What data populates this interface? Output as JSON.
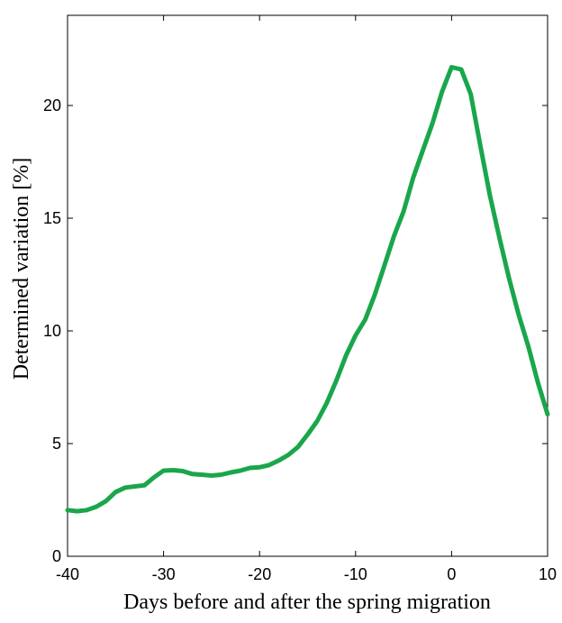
{
  "chart_data": {
    "type": "line",
    "xlabel": "Days before and after the spring migration",
    "ylabel": "Determined variation  [%]",
    "xlim": [
      -40,
      10
    ],
    "ylim": [
      0,
      24
    ],
    "x_ticks": [
      -40,
      -30,
      -20,
      -10,
      0,
      10
    ],
    "y_ticks": [
      0,
      5,
      10,
      15,
      20
    ],
    "grid": false,
    "series": [
      {
        "color": "#1aa64b",
        "x": [
          -40,
          -39,
          -38,
          -37,
          -36,
          -35,
          -34,
          -33,
          -32,
          -31,
          -30,
          -29,
          -28,
          -27,
          -26,
          -25,
          -24,
          -23,
          -22,
          -21,
          -20,
          -19,
          -18,
          -17,
          -16,
          -15,
          -14,
          -13,
          -12,
          -11,
          -10,
          -9,
          -8,
          -7,
          -6,
          -5,
          -4,
          -3,
          -2,
          -1,
          0,
          1,
          2,
          3,
          4,
          5,
          6,
          7,
          8,
          9,
          10
        ],
        "y": [
          2.05,
          2.0,
          2.05,
          2.2,
          2.45,
          2.85,
          3.05,
          3.1,
          3.15,
          3.5,
          3.8,
          3.82,
          3.78,
          3.65,
          3.62,
          3.58,
          3.62,
          3.72,
          3.8,
          3.92,
          3.95,
          4.05,
          4.25,
          4.5,
          4.85,
          5.4,
          6.0,
          6.8,
          7.8,
          8.9,
          9.8,
          10.5,
          11.6,
          12.9,
          14.2,
          15.3,
          16.8,
          18.0,
          19.2,
          20.6,
          21.7,
          21.6,
          20.5,
          18.2,
          16.0,
          14.1,
          12.3,
          10.7,
          9.3,
          7.7,
          6.3
        ]
      }
    ]
  }
}
